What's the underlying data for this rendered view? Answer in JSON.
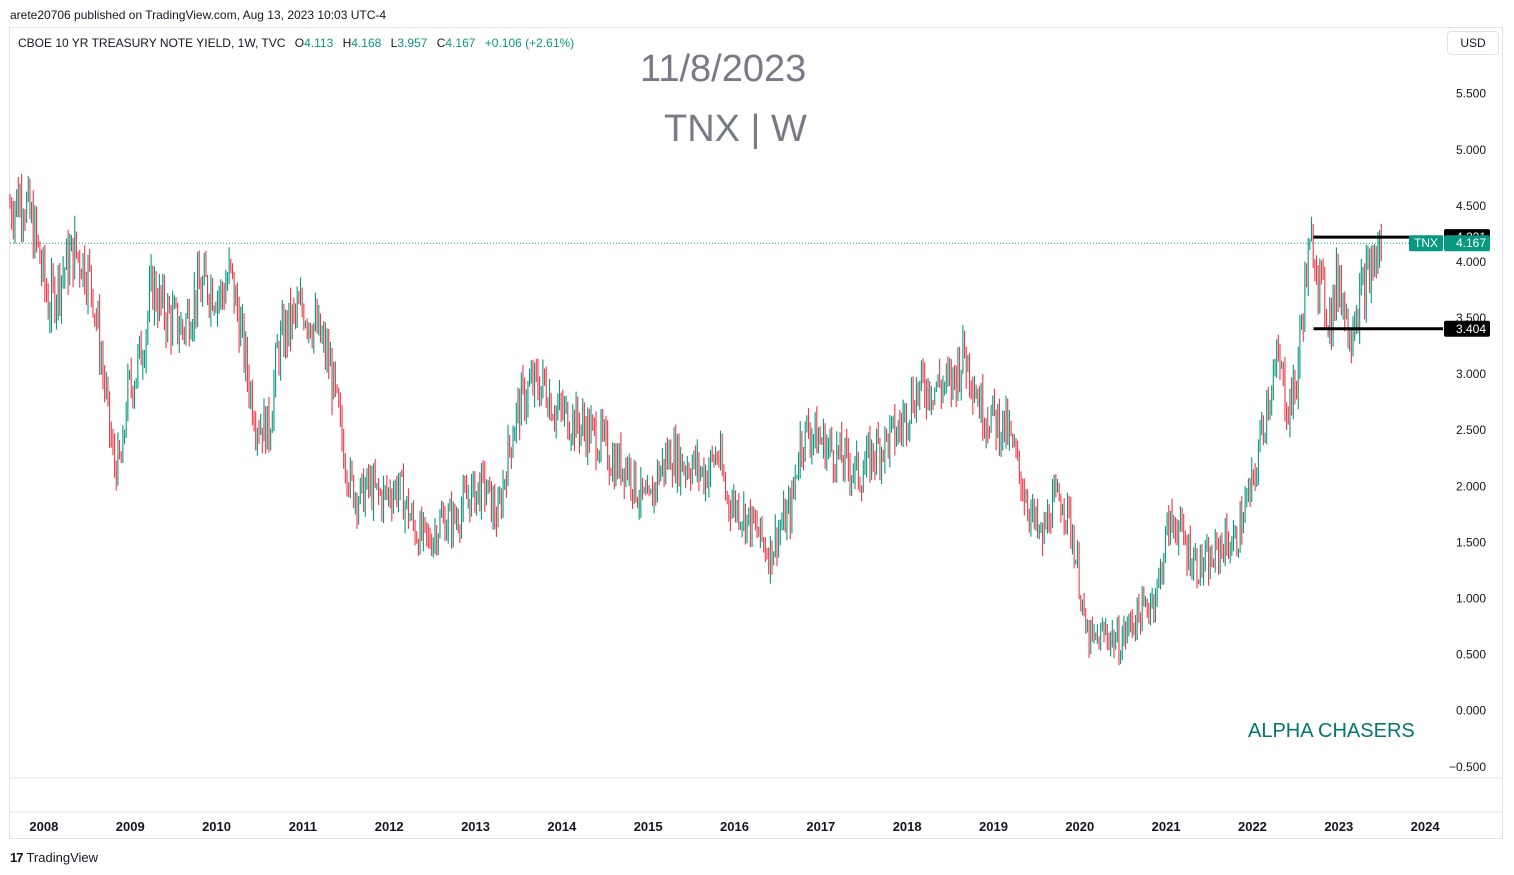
{
  "publish_line": "arete20706 published on TradingView.com, Aug 13, 2023 10:03 UTC-4",
  "legend": {
    "name": "CBOE 10 YR TREASURY NOTE YIELD, 1W, TVC",
    "o_label": "O",
    "o_value": "4.113",
    "h_label": "H",
    "h_value": "4.168",
    "l_label": "L",
    "l_value": "3.957",
    "c_label": "C",
    "c_value": "4.167",
    "change": "+0.106 (+2.61%)"
  },
  "currency_button": "USD",
  "watermark": {
    "date": "11/8/2023",
    "symbol": "TNX | W"
  },
  "brand_text": "ALPHA CHASERS",
  "footer": {
    "logo": "17",
    "text": "TradingView"
  },
  "colors": {
    "up": "#089981",
    "down": "#f23645",
    "accent": "#00796b",
    "line": "#000000",
    "label_bg": "#000000"
  },
  "chart_data": {
    "type": "candlestick",
    "title": "CBOE 10 YR TREASURY NOTE YIELD, 1W, TVC",
    "y_axis": {
      "position": "right",
      "ylim": [
        -0.6,
        5.8
      ],
      "ticks": [
        "5.500",
        "5.000",
        "4.500",
        "4.000",
        "3.500",
        "3.000",
        "2.500",
        "2.000",
        "1.500",
        "1.000",
        "0.500",
        "0.000",
        "−0.500"
      ],
      "tick_values": [
        5.5,
        5.0,
        4.5,
        4.0,
        3.5,
        3.0,
        2.5,
        2.0,
        1.5,
        1.0,
        0.5,
        0.0,
        -0.5
      ]
    },
    "x_axis": {
      "xlim": [
        2007.7,
        2024.3
      ],
      "ticks": [
        "2008",
        "2009",
        "2010",
        "2011",
        "2012",
        "2013",
        "2014",
        "2015",
        "2016",
        "2017",
        "2018",
        "2019",
        "2020",
        "2021",
        "2022",
        "2023",
        "2024"
      ],
      "tick_values": [
        2008,
        2009,
        2010,
        2011,
        2012,
        2013,
        2014,
        2015,
        2016,
        2017,
        2018,
        2019,
        2020,
        2021,
        2022,
        2023,
        2024
      ]
    },
    "series": [
      {
        "name": "TNX",
        "kind": "close_path",
        "x": [
          2007.7,
          2007.85,
          2008.0,
          2008.15,
          2008.3,
          2008.45,
          2008.55,
          2008.65,
          2008.75,
          2008.9,
          2009.0,
          2009.05,
          2009.15,
          2009.25,
          2009.35,
          2009.45,
          2009.55,
          2009.7,
          2009.85,
          2010.0,
          2010.15,
          2010.25,
          2010.35,
          2010.45,
          2010.55,
          2010.7,
          2010.8,
          2010.9,
          2011.0,
          2011.1,
          2011.25,
          2011.4,
          2011.55,
          2011.65,
          2011.75,
          2011.85,
          2012.0,
          2012.2,
          2012.4,
          2012.55,
          2012.7,
          2012.85,
          2013.0,
          2013.2,
          2013.35,
          2013.45,
          2013.55,
          2013.65,
          2013.75,
          2013.9,
          2014.0,
          2014.2,
          2014.4,
          2014.55,
          2014.7,
          2014.85,
          2015.0,
          2015.1,
          2015.2,
          2015.35,
          2015.5,
          2015.6,
          2015.75,
          2015.9,
          2016.0,
          2016.15,
          2016.35,
          2016.5,
          2016.6,
          2016.75,
          2016.85,
          2016.95,
          2017.1,
          2017.25,
          2017.4,
          2017.55,
          2017.7,
          2017.85,
          2018.0,
          2018.15,
          2018.3,
          2018.45,
          2018.6,
          2018.75,
          2018.85,
          2018.95,
          2019.1,
          2019.25,
          2019.4,
          2019.55,
          2019.65,
          2019.75,
          2019.9,
          2020.0,
          2020.1,
          2020.15,
          2020.25,
          2020.4,
          2020.55,
          2020.7,
          2020.85,
          2021.0,
          2021.1,
          2021.2,
          2021.3,
          2021.45,
          2021.6,
          2021.75,
          2021.9,
          2022.0,
          2022.1,
          2022.2,
          2022.3,
          2022.4,
          2022.5,
          2022.6,
          2022.7,
          2022.8,
          2022.9,
          2023.0,
          2023.1,
          2023.2,
          2023.3,
          2023.4,
          2023.5,
          2023.6
        ],
        "close": [
          4.5,
          4.6,
          4.2,
          3.6,
          3.9,
          4.1,
          4.0,
          3.8,
          3.2,
          2.2,
          2.2,
          2.8,
          3.0,
          3.3,
          3.8,
          3.6,
          3.5,
          3.4,
          3.7,
          3.8,
          3.7,
          3.9,
          3.5,
          3.0,
          2.6,
          2.5,
          3.2,
          3.4,
          3.5,
          3.6,
          3.4,
          3.1,
          2.4,
          2.0,
          1.9,
          2.0,
          1.9,
          2.0,
          1.6,
          1.5,
          1.7,
          1.7,
          1.9,
          2.0,
          1.7,
          2.2,
          2.6,
          2.8,
          2.9,
          2.9,
          2.7,
          2.6,
          2.5,
          2.4,
          2.2,
          2.2,
          1.9,
          1.8,
          2.1,
          2.3,
          2.2,
          2.2,
          2.1,
          2.3,
          1.9,
          1.8,
          1.6,
          1.4,
          1.6,
          1.8,
          2.4,
          2.5,
          2.4,
          2.3,
          2.2,
          2.1,
          2.3,
          2.4,
          2.5,
          2.8,
          2.9,
          2.9,
          2.9,
          3.2,
          3.0,
          2.7,
          2.6,
          2.5,
          2.1,
          1.7,
          1.5,
          1.8,
          1.9,
          1.6,
          1.1,
          0.7,
          0.6,
          0.7,
          0.6,
          0.8,
          0.9,
          1.1,
          1.6,
          1.7,
          1.5,
          1.3,
          1.3,
          1.5,
          1.5,
          1.8,
          2.0,
          2.5,
          2.9,
          3.1,
          2.7,
          2.9,
          3.8,
          4.2,
          3.7,
          3.5,
          3.9,
          3.4,
          3.6,
          3.8,
          4.0,
          4.167
        ]
      }
    ],
    "annotations": [
      {
        "type": "hline",
        "y": 4.221,
        "x_start": 2022.8,
        "x_end": 2024.4,
        "label": "4.221"
      },
      {
        "type": "hline",
        "y": 3.404,
        "x_start": 2022.8,
        "x_end": 2024.4,
        "label": "3.404"
      },
      {
        "type": "price_line",
        "y": 4.167,
        "label": "4.167",
        "symbol": "TNX"
      }
    ]
  }
}
